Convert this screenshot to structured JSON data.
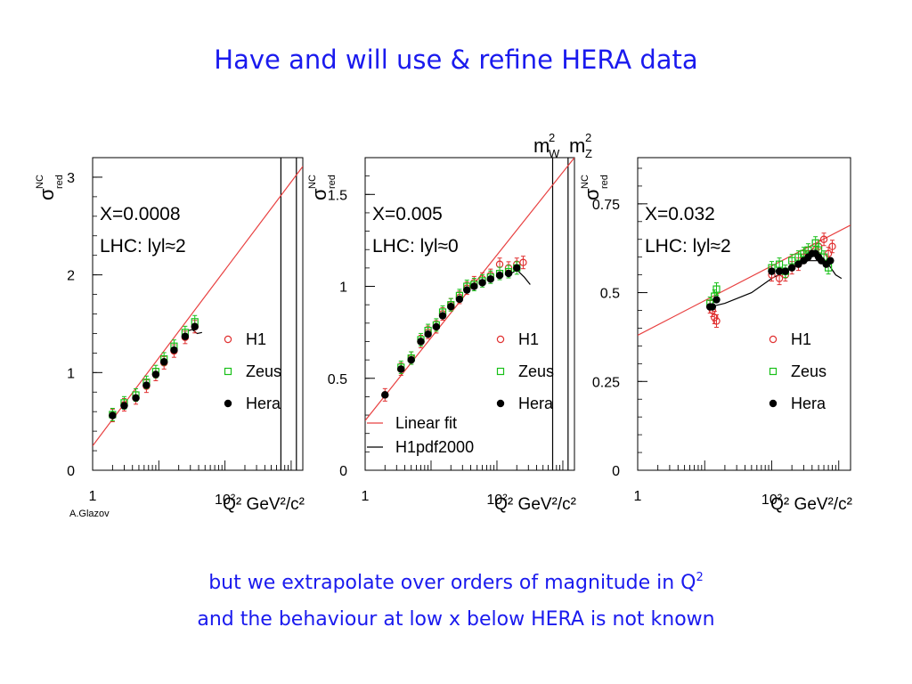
{
  "slide": {
    "title": "Have and will use & refine HERA data",
    "caption_line1": "but we extrapolate over orders of magnitude in Q",
    "caption_line1_sup": "2",
    "caption_line2": "and the behaviour at low x below HERA is not known",
    "credit": "A.Glazov"
  },
  "colors": {
    "title": "#1a1aee",
    "h1": "#e03030",
    "zeus": "#18c018",
    "hera": "#000000",
    "fit": "#e84040",
    "theory": "#000000"
  },
  "chart_data": [
    {
      "type": "scatter",
      "x_label": "Q² GeV²/c²",
      "x_scale": "log",
      "xlim": [
        1,
        1500
      ],
      "x_ticks": [
        "1",
        "10²"
      ],
      "y_label": "σ NC red",
      "ylim": [
        0,
        3.2
      ],
      "y_ticks": [
        "0",
        "1",
        "2",
        "3"
      ],
      "y_tick_values": [
        0,
        1,
        2,
        3
      ],
      "panel_label_1": "X=0.0008",
      "panel_label_2": "LHC: lyl≈2",
      "vlines": [
        700,
        1200
      ],
      "series": [
        {
          "name": "H1",
          "marker": "open-circle",
          "x": [
            2.0,
            3.0,
            4.5,
            6.5,
            9.0,
            12,
            17,
            25,
            35
          ],
          "y": [
            0.56,
            0.67,
            0.74,
            0.86,
            0.98,
            1.1,
            1.22,
            1.36,
            1.47
          ]
        },
        {
          "name": "Zeus",
          "marker": "open-square",
          "x": [
            2.0,
            3.0,
            4.5,
            6.5,
            9.0,
            12,
            17,
            25,
            35
          ],
          "y": [
            0.57,
            0.69,
            0.77,
            0.9,
            1.01,
            1.14,
            1.27,
            1.41,
            1.52
          ]
        },
        {
          "name": "Hera",
          "marker": "filled-circle",
          "x": [
            2.0,
            3.0,
            4.5,
            6.5,
            9.0,
            12,
            17,
            25,
            35
          ],
          "y": [
            0.56,
            0.66,
            0.74,
            0.87,
            0.98,
            1.11,
            1.23,
            1.37,
            1.47
          ]
        }
      ],
      "fit": {
        "name": "Linear fit",
        "x": [
          1,
          1500
        ],
        "y": [
          0.25,
          3.11
        ]
      },
      "theory": {
        "name": "H1pdf2000",
        "x": [
          28,
          32,
          38,
          45
        ],
        "y": [
          1.43,
          1.44,
          1.4,
          1.41
        ]
      }
    },
    {
      "type": "scatter",
      "x_label": "Q² GeV²/c²",
      "x_scale": "log",
      "xlim": [
        1,
        1500
      ],
      "x_ticks": [
        "1",
        "10²"
      ],
      "y_label": "σ NC red",
      "ylim": [
        0,
        1.7
      ],
      "y_ticks": [
        "0",
        "0.5",
        "1",
        "1.5"
      ],
      "y_tick_values": [
        0,
        0.5,
        1,
        1.5
      ],
      "panel_label_1": "X=0.005",
      "panel_label_2": "LHC: lyl≈0",
      "vlines": [
        700,
        1200
      ],
      "top_labels": [
        "m²W",
        "m²Z"
      ],
      "series": [
        {
          "name": "H1",
          "marker": "open-circle",
          "x": [
            2.0,
            3.5,
            5.0,
            7.0,
            9.0,
            12,
            15,
            20,
            27,
            35,
            45,
            60,
            80,
            110,
            150,
            200,
            250
          ],
          "y": [
            0.41,
            0.55,
            0.61,
            0.7,
            0.75,
            0.78,
            0.85,
            0.9,
            0.94,
            0.99,
            1.02,
            1.04,
            1.06,
            1.12,
            1.1,
            1.12,
            1.13
          ]
        },
        {
          "name": "Zeus",
          "marker": "open-square",
          "x": [
            3.5,
            5.0,
            7.0,
            9.0,
            12,
            15,
            20,
            27,
            35,
            45,
            60,
            80,
            110,
            150,
            200
          ],
          "y": [
            0.56,
            0.61,
            0.71,
            0.76,
            0.79,
            0.86,
            0.9,
            0.95,
            1.0,
            1.01,
            1.03,
            1.05,
            1.07,
            1.08,
            1.1
          ]
        },
        {
          "name": "Hera",
          "marker": "filled-circle",
          "x": [
            2.0,
            3.5,
            5.0,
            7.0,
            9.0,
            12,
            15,
            20,
            27,
            35,
            45,
            60,
            80,
            110,
            150,
            200
          ],
          "y": [
            0.41,
            0.55,
            0.6,
            0.7,
            0.74,
            0.78,
            0.84,
            0.89,
            0.93,
            0.98,
            1.0,
            1.02,
            1.04,
            1.06,
            1.07,
            1.1
          ]
        }
      ],
      "fit": {
        "name": "Linear fit",
        "x": [
          1,
          1500
        ],
        "y": [
          0.27,
          1.7
        ]
      },
      "theory": {
        "name": "H1pdf2000",
        "x": [
          150,
          200,
          260,
          320
        ],
        "y": [
          1.06,
          1.09,
          1.05,
          1.01
        ]
      },
      "legend_extra": [
        {
          "kind": "fit",
          "label": "Linear fit"
        },
        {
          "kind": "theory",
          "label": "H1pdf2000"
        }
      ]
    },
    {
      "type": "scatter",
      "x_label": "Q² GeV²/c²",
      "x_scale": "log",
      "xlim": [
        1,
        1500
      ],
      "x_ticks": [
        "1",
        "10²"
      ],
      "y_label": "σ NC red",
      "ylim": [
        0,
        0.88
      ],
      "y_ticks": [
        "0",
        "0.25",
        "0.5",
        "0.75"
      ],
      "y_tick_values": [
        0,
        0.25,
        0.5,
        0.75
      ],
      "panel_label_1": "X=0.032",
      "panel_label_2": "LHC: lyl≈2",
      "series": [
        {
          "name": "H1",
          "marker": "open-circle",
          "x": [
            12,
            13,
            14,
            15,
            100,
            130,
            160,
            200,
            250,
            300,
            350,
            450,
            500,
            600,
            700,
            800
          ],
          "y": [
            0.46,
            0.45,
            0.43,
            0.42,
            0.55,
            0.54,
            0.55,
            0.57,
            0.58,
            0.6,
            0.61,
            0.62,
            0.63,
            0.65,
            0.61,
            0.63
          ]
        },
        {
          "name": "Zeus",
          "marker": "open-square",
          "x": [
            12,
            14,
            15,
            100,
            130,
            160,
            200,
            250,
            300,
            350,
            450,
            500,
            600,
            700
          ],
          "y": [
            0.47,
            0.49,
            0.51,
            0.57,
            0.58,
            0.56,
            0.59,
            0.6,
            0.61,
            0.62,
            0.64,
            0.62,
            0.6,
            0.57
          ]
        },
        {
          "name": "Hera",
          "marker": "filled-circle",
          "x": [
            12,
            13,
            15,
            100,
            130,
            160,
            200,
            250,
            300,
            350,
            400,
            450,
            500,
            550,
            650,
            750
          ],
          "y": [
            0.46,
            0.46,
            0.48,
            0.56,
            0.56,
            0.56,
            0.57,
            0.58,
            0.59,
            0.6,
            0.61,
            0.61,
            0.6,
            0.59,
            0.58,
            0.59
          ]
        }
      ],
      "fit": {
        "name": "Linear fit",
        "x": [
          1,
          1500
        ],
        "y": [
          0.38,
          0.69
        ]
      },
      "theory": {
        "name": "H1pdf2000",
        "x": [
          12,
          20,
          50,
          100,
          200,
          350,
          500,
          700,
          900,
          1100
        ],
        "y": [
          0.46,
          0.47,
          0.5,
          0.54,
          0.57,
          0.59,
          0.59,
          0.58,
          0.55,
          0.54
        ]
      }
    }
  ]
}
